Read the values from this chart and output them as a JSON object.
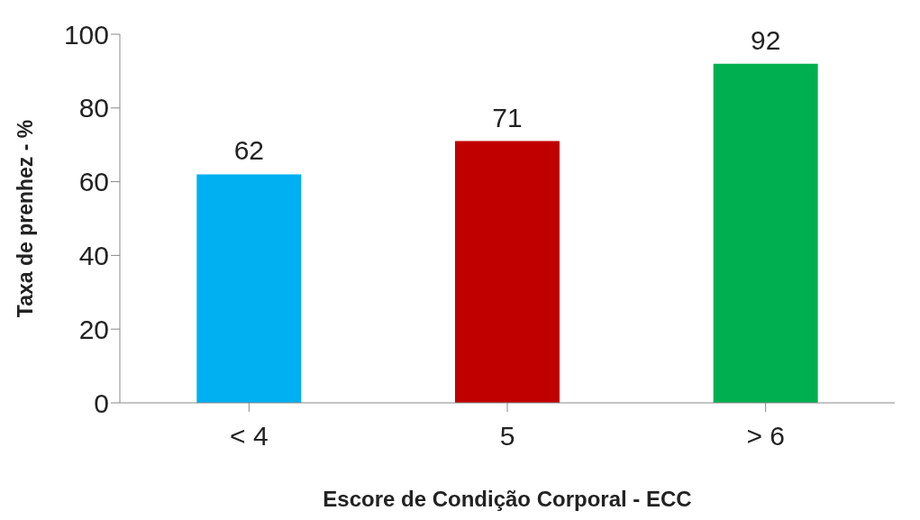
{
  "chart_data": {
    "type": "bar",
    "xlabel": "Escore de Condição Corporal - ECC",
    "ylabel": "Taxa de prenhez - %",
    "categories": [
      "< 4",
      "5",
      "> 6"
    ],
    "values": [
      62,
      71,
      92
    ],
    "colors": [
      "#00b0f0",
      "#c00000",
      "#00b050"
    ],
    "ylim": [
      0,
      100
    ],
    "yticks": [
      0,
      20,
      40,
      60,
      80,
      100
    ],
    "data_labels": true
  }
}
